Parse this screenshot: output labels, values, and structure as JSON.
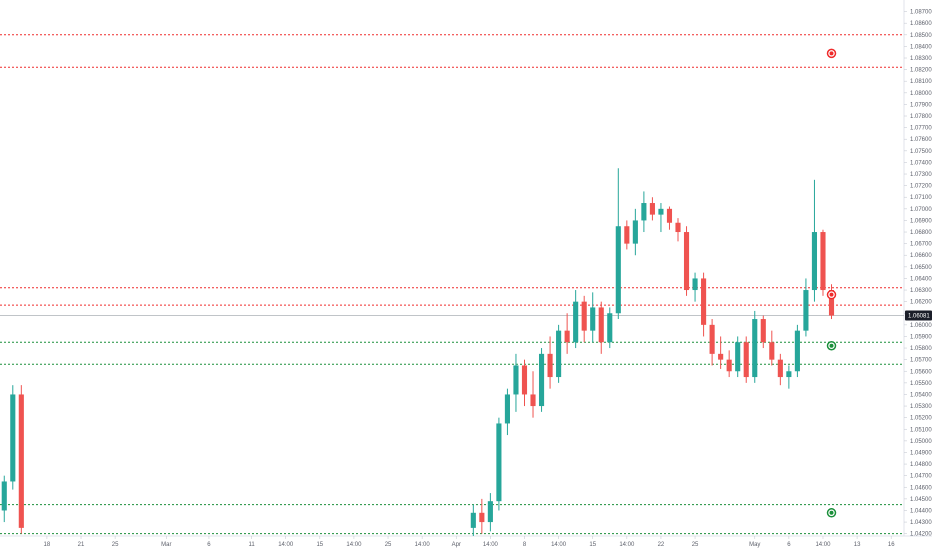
{
  "chart_data": {
    "type": "candlestick",
    "title": "",
    "colors": {
      "up": "#26a69a",
      "down": "#ef5350",
      "wick_up": "#26a69a",
      "wick_down": "#ef5350",
      "resistance": "#ef2b2b",
      "support": "#1a8f3a",
      "axis_text": "#5d606b",
      "last_price_box": "#1b1e29"
    },
    "y_axis": {
      "side": "right",
      "range": [
        1.0418,
        1.088
      ],
      "ticks": [
        "1.08700",
        "1.08600",
        "1.08500",
        "1.08400",
        "1.08300",
        "1.08200",
        "1.08100",
        "1.08000",
        "1.07900",
        "1.07800",
        "1.07700",
        "1.07600",
        "1.07500",
        "1.07400",
        "1.07300",
        "1.07200",
        "1.07100",
        "1.07000",
        "1.06900",
        "1.06800",
        "1.06700",
        "1.06600",
        "1.06500",
        "1.06400",
        "1.06300",
        "1.06200",
        "1.06100",
        "1.06000",
        "1.05900",
        "1.05800",
        "1.05700",
        "1.05600",
        "1.05500",
        "1.05400",
        "1.05300",
        "1.05200",
        "1.05100",
        "1.05000",
        "1.04900",
        "1.04800",
        "1.04700",
        "1.04600",
        "1.04500",
        "1.04400",
        "1.04300",
        "1.04200"
      ]
    },
    "x_axis": {
      "ticks": [
        {
          "label": "18",
          "slot": 5
        },
        {
          "label": "21",
          "slot": 9
        },
        {
          "label": "25",
          "slot": 13
        },
        {
          "label": "Mar",
          "slot": 19
        },
        {
          "label": "6",
          "slot": 24
        },
        {
          "label": "11",
          "slot": 29
        },
        {
          "label": "14:00",
          "slot": 33
        },
        {
          "label": "15",
          "slot": 37
        },
        {
          "label": "14:00",
          "slot": 41
        },
        {
          "label": "25",
          "slot": 45
        },
        {
          "label": "14:00",
          "slot": 49
        },
        {
          "label": "Apr",
          "slot": 53
        },
        {
          "label": "14:00",
          "slot": 57
        },
        {
          "label": "8",
          "slot": 61
        },
        {
          "label": "14:00",
          "slot": 65
        },
        {
          "label": "15",
          "slot": 69
        },
        {
          "label": "14:00",
          "slot": 73
        },
        {
          "label": "22",
          "slot": 77
        },
        {
          "label": "25",
          "slot": 81
        },
        {
          "label": "May",
          "slot": 88
        },
        {
          "label": "6",
          "slot": 92
        },
        {
          "label": "14:00",
          "slot": 96
        },
        {
          "label": "13",
          "slot": 100
        },
        {
          "label": "16",
          "slot": 104
        }
      ],
      "slot_count": 106
    },
    "last_price": {
      "value": 1.06081,
      "label": "1.06081"
    },
    "levels": [
      {
        "name": "resistance-1",
        "value": 1.085,
        "kind": "resistance"
      },
      {
        "name": "resistance-2",
        "value": 1.0822,
        "kind": "resistance"
      },
      {
        "name": "resistance-3",
        "value": 1.0632,
        "kind": "resistance"
      },
      {
        "name": "resistance-4",
        "value": 1.0617,
        "kind": "resistance"
      },
      {
        "name": "support-1",
        "value": 1.0585,
        "kind": "support"
      },
      {
        "name": "support-2",
        "value": 1.0566,
        "kind": "support"
      },
      {
        "name": "support-3",
        "value": 1.0445,
        "kind": "support"
      },
      {
        "name": "support-4",
        "value": 1.042,
        "kind": "support"
      }
    ],
    "markers": [
      {
        "name": "alert-marker-1",
        "slot": 97,
        "value": 1.0834,
        "kind": "resistance"
      },
      {
        "name": "alert-marker-2",
        "slot": 97,
        "value": 1.0626,
        "kind": "resistance"
      },
      {
        "name": "alert-marker-3",
        "slot": 97,
        "value": 1.0582,
        "kind": "support"
      },
      {
        "name": "alert-marker-4",
        "slot": 97,
        "value": 1.0438,
        "kind": "support"
      }
    ],
    "candles": [
      {
        "slot": 0,
        "o": 1.044,
        "h": 1.047,
        "l": 1.043,
        "c": 1.0465
      },
      {
        "slot": 1,
        "o": 1.0465,
        "h": 1.0548,
        "l": 1.0458,
        "c": 1.054
      },
      {
        "slot": 2,
        "o": 1.054,
        "h": 1.0548,
        "l": 1.042,
        "c": 1.0425
      },
      {
        "slot": 55,
        "o": 1.0425,
        "h": 1.0445,
        "l": 1.0418,
        "c": 1.0438
      },
      {
        "slot": 56,
        "o": 1.0438,
        "h": 1.045,
        "l": 1.042,
        "c": 1.043
      },
      {
        "slot": 57,
        "o": 1.043,
        "h": 1.0455,
        "l": 1.0422,
        "c": 1.0448
      },
      {
        "slot": 58,
        "o": 1.0448,
        "h": 1.052,
        "l": 1.044,
        "c": 1.0515
      },
      {
        "slot": 59,
        "o": 1.0515,
        "h": 1.0545,
        "l": 1.0505,
        "c": 1.054
      },
      {
        "slot": 60,
        "o": 1.054,
        "h": 1.0575,
        "l": 1.0525,
        "c": 1.0565
      },
      {
        "slot": 61,
        "o": 1.0565,
        "h": 1.057,
        "l": 1.053,
        "c": 1.054
      },
      {
        "slot": 62,
        "o": 1.054,
        "h": 1.056,
        "l": 1.052,
        "c": 1.053
      },
      {
        "slot": 63,
        "o": 1.053,
        "h": 1.058,
        "l": 1.0525,
        "c": 1.0575
      },
      {
        "slot": 64,
        "o": 1.0575,
        "h": 1.059,
        "l": 1.0545,
        "c": 1.0555
      },
      {
        "slot": 65,
        "o": 1.0555,
        "h": 1.06,
        "l": 1.055,
        "c": 1.0595
      },
      {
        "slot": 66,
        "o": 1.0595,
        "h": 1.061,
        "l": 1.0575,
        "c": 1.0585
      },
      {
        "slot": 67,
        "o": 1.0585,
        "h": 1.063,
        "l": 1.058,
        "c": 1.062
      },
      {
        "slot": 68,
        "o": 1.062,
        "h": 1.0625,
        "l": 1.0585,
        "c": 1.0595
      },
      {
        "slot": 69,
        "o": 1.0595,
        "h": 1.0628,
        "l": 1.0585,
        "c": 1.0615
      },
      {
        "slot": 70,
        "o": 1.0615,
        "h": 1.062,
        "l": 1.0575,
        "c": 1.0585
      },
      {
        "slot": 71,
        "o": 1.0585,
        "h": 1.0615,
        "l": 1.058,
        "c": 1.061
      },
      {
        "slot": 72,
        "o": 1.061,
        "h": 1.0735,
        "l": 1.0605,
        "c": 1.0685
      },
      {
        "slot": 73,
        "o": 1.0685,
        "h": 1.069,
        "l": 1.0665,
        "c": 1.067
      },
      {
        "slot": 74,
        "o": 1.067,
        "h": 1.07,
        "l": 1.066,
        "c": 1.069
      },
      {
        "slot": 75,
        "o": 1.069,
        "h": 1.0715,
        "l": 1.068,
        "c": 1.0705
      },
      {
        "slot": 76,
        "o": 1.0705,
        "h": 1.071,
        "l": 1.069,
        "c": 1.0695
      },
      {
        "slot": 77,
        "o": 1.0695,
        "h": 1.0705,
        "l": 1.068,
        "c": 1.07
      },
      {
        "slot": 78,
        "o": 1.07,
        "h": 1.0702,
        "l": 1.0682,
        "c": 1.0688
      },
      {
        "slot": 79,
        "o": 1.0688,
        "h": 1.0692,
        "l": 1.0672,
        "c": 1.068
      },
      {
        "slot": 80,
        "o": 1.068,
        "h": 1.0685,
        "l": 1.0625,
        "c": 1.063
      },
      {
        "slot": 81,
        "o": 1.063,
        "h": 1.0645,
        "l": 1.062,
        "c": 1.064
      },
      {
        "slot": 82,
        "o": 1.064,
        "h": 1.0645,
        "l": 1.059,
        "c": 1.06
      },
      {
        "slot": 83,
        "o": 1.06,
        "h": 1.0605,
        "l": 1.0565,
        "c": 1.0575
      },
      {
        "slot": 84,
        "o": 1.0575,
        "h": 1.059,
        "l": 1.0562,
        "c": 1.057
      },
      {
        "slot": 85,
        "o": 1.057,
        "h": 1.0578,
        "l": 1.0555,
        "c": 1.056
      },
      {
        "slot": 86,
        "o": 1.056,
        "h": 1.059,
        "l": 1.0555,
        "c": 1.0585
      },
      {
        "slot": 87,
        "o": 1.0585,
        "h": 1.059,
        "l": 1.055,
        "c": 1.0555
      },
      {
        "slot": 88,
        "o": 1.0555,
        "h": 1.0612,
        "l": 1.055,
        "c": 1.0605
      },
      {
        "slot": 89,
        "o": 1.0605,
        "h": 1.0608,
        "l": 1.058,
        "c": 1.0585
      },
      {
        "slot": 90,
        "o": 1.0585,
        "h": 1.0595,
        "l": 1.0565,
        "c": 1.057
      },
      {
        "slot": 91,
        "o": 1.057,
        "h": 1.0575,
        "l": 1.0548,
        "c": 1.0555
      },
      {
        "slot": 92,
        "o": 1.0555,
        "h": 1.0565,
        "l": 1.0545,
        "c": 1.056
      },
      {
        "slot": 93,
        "o": 1.056,
        "h": 1.06,
        "l": 1.0555,
        "c": 1.0595
      },
      {
        "slot": 94,
        "o": 1.0595,
        "h": 1.064,
        "l": 1.059,
        "c": 1.063
      },
      {
        "slot": 95,
        "o": 1.063,
        "h": 1.0725,
        "l": 1.062,
        "c": 1.068
      },
      {
        "slot": 96,
        "o": 1.068,
        "h": 1.0682,
        "l": 1.0625,
        "c": 1.063
      },
      {
        "slot": 97,
        "o": 1.063,
        "h": 1.0635,
        "l": 1.0605,
        "c": 1.0608
      }
    ]
  }
}
